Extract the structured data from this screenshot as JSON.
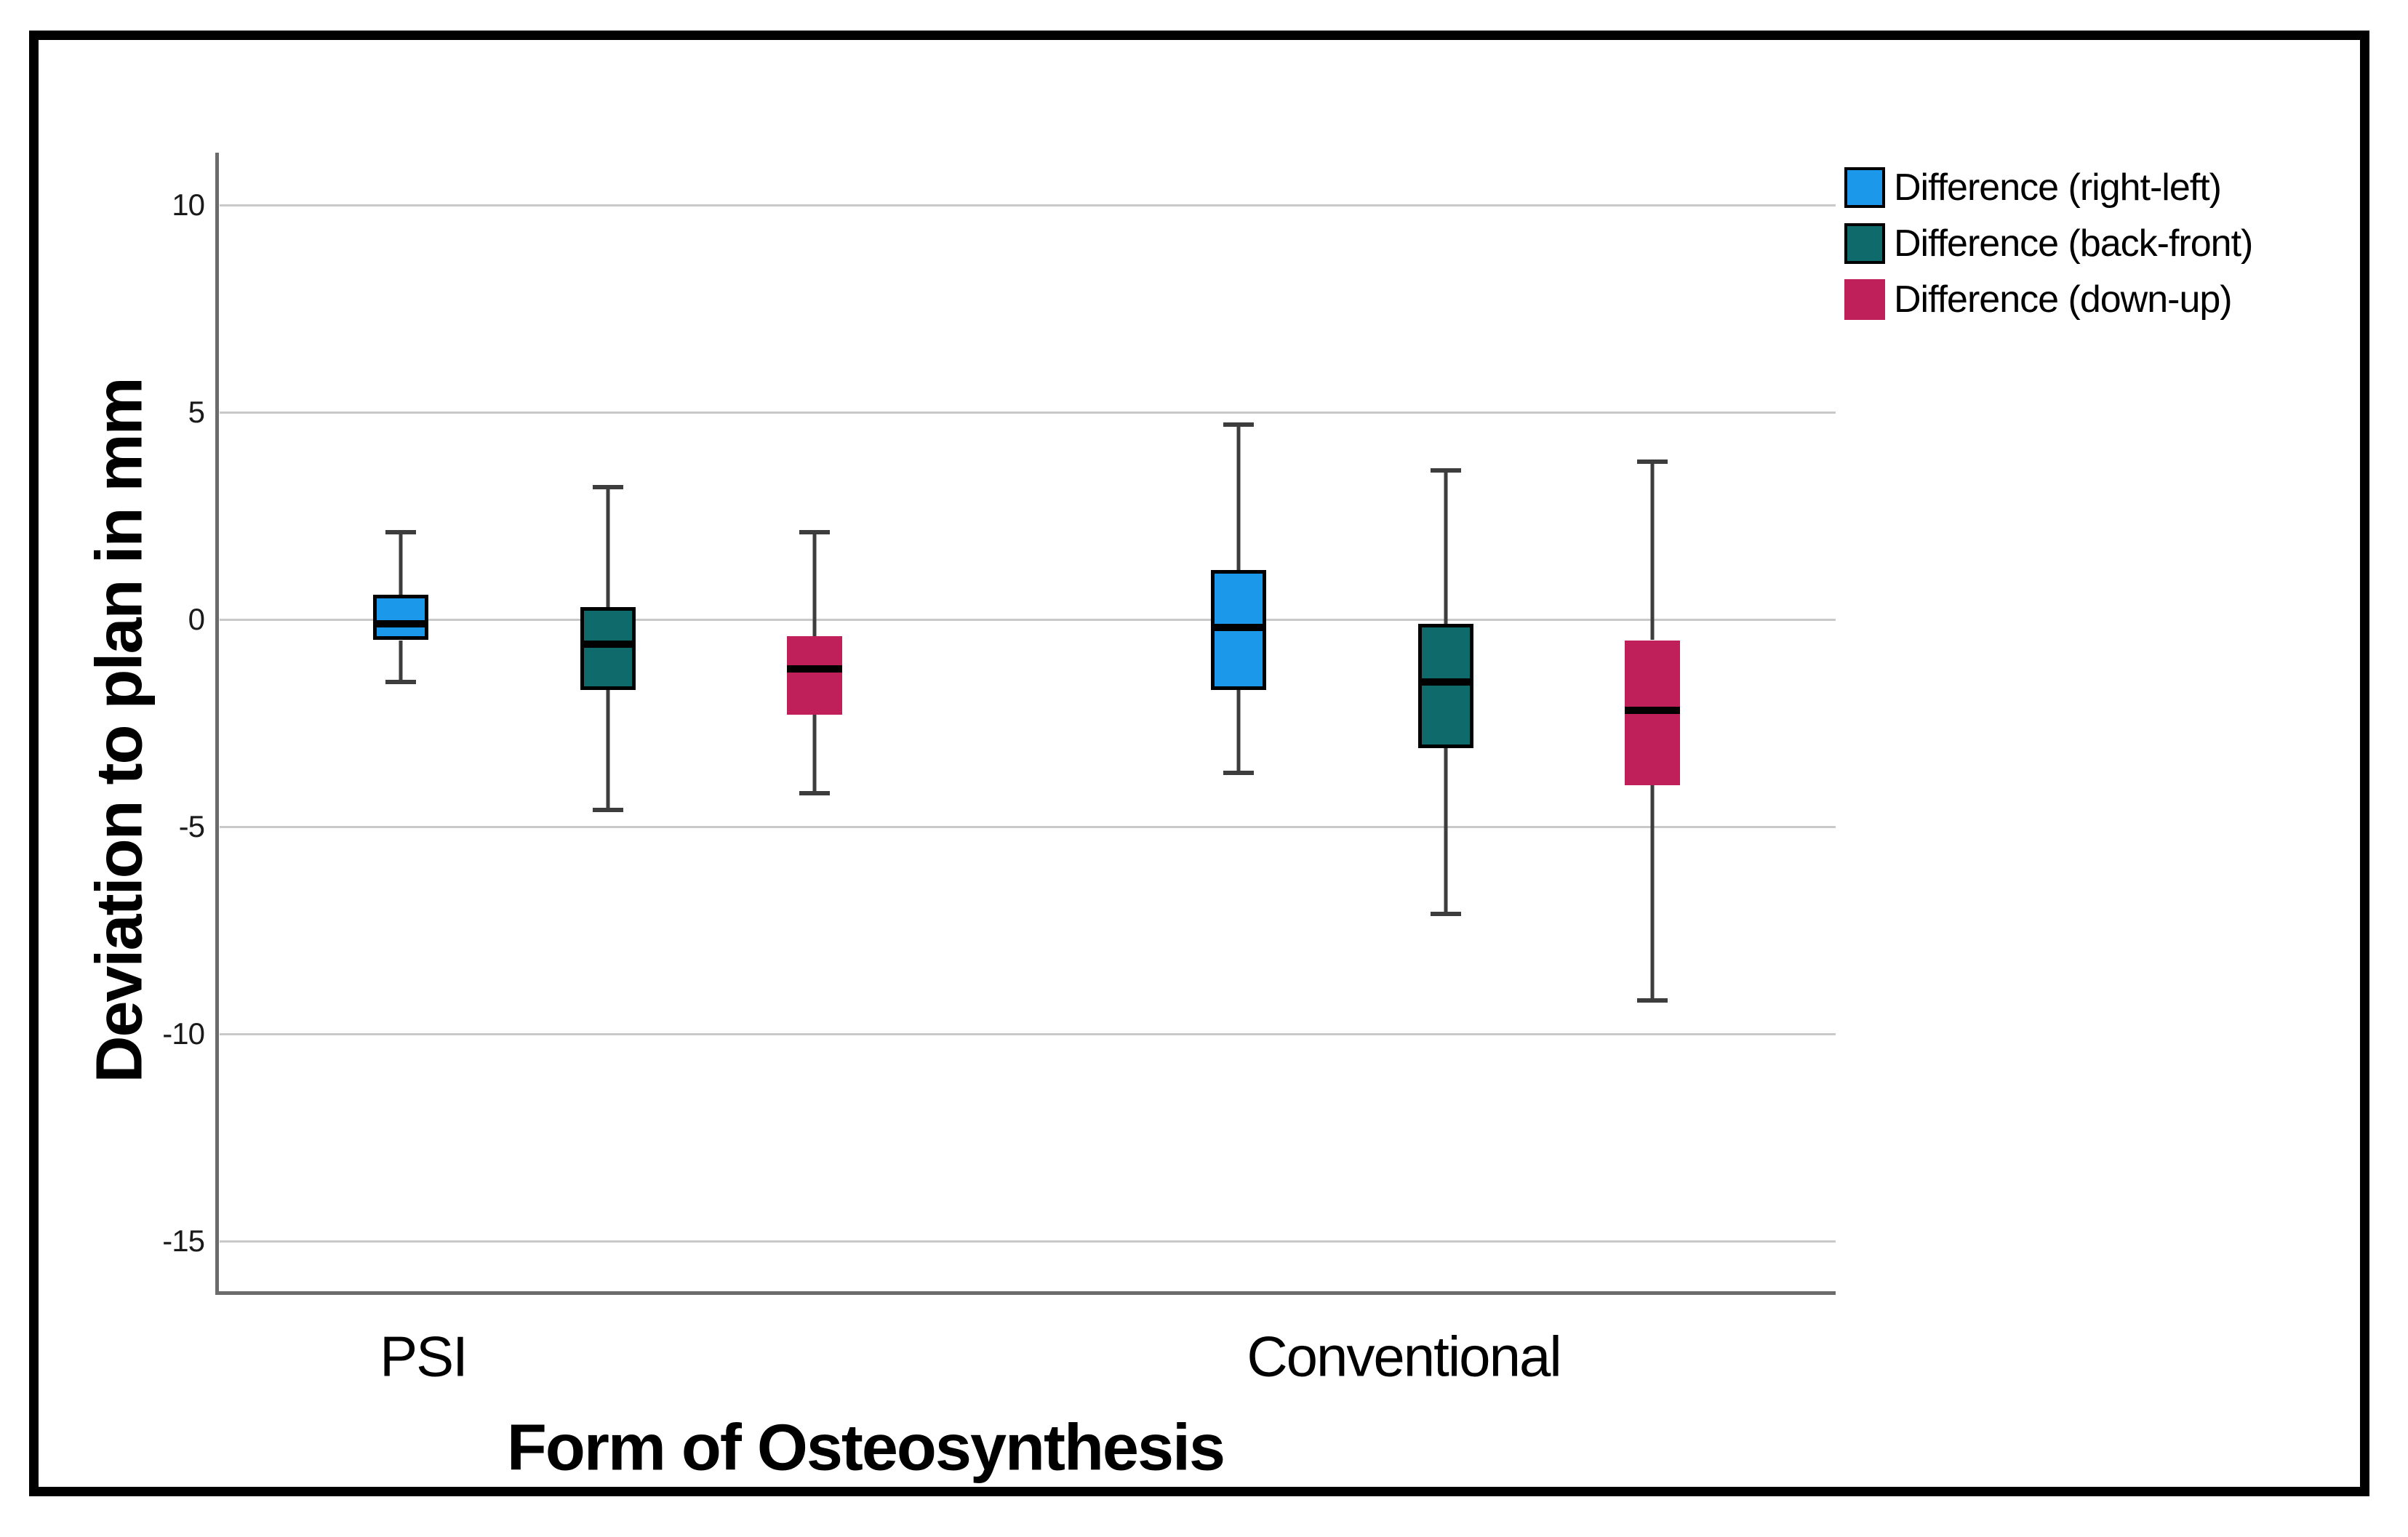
{
  "chart_data": {
    "type": "boxplot",
    "title": "",
    "xlabel": "Form of Osteosynthesis",
    "ylabel": "Deviation to plan in mm",
    "categories": [
      "PSI",
      "Conventional"
    ],
    "yticks": [
      10,
      5,
      0,
      -5,
      -10,
      -15
    ],
    "ylim": [
      -16.4,
      11.3
    ],
    "grid": "horizontal-only",
    "legend_position": "top-right",
    "series": [
      {
        "name": "Difference (right-left)",
        "color": "#1B98EA",
        "border_color": "#000000",
        "boxes": [
          {
            "category": "PSI",
            "whisker_low": -1.5,
            "q1": -0.5,
            "median": -0.1,
            "q3": 0.6,
            "whisker_high": 2.1
          },
          {
            "category": "Conventional",
            "whisker_low": -3.7,
            "q1": -1.7,
            "median": -0.2,
            "q3": 1.2,
            "whisker_high": 4.7
          }
        ]
      },
      {
        "name": "Difference (back-front)",
        "color": "#0E6A6B",
        "border_color": "#000000",
        "boxes": [
          {
            "category": "PSI",
            "whisker_low": -4.6,
            "q1": -1.7,
            "median": -0.6,
            "q3": 0.3,
            "whisker_high": 3.2
          },
          {
            "category": "Conventional",
            "whisker_low": -7.1,
            "q1": -3.1,
            "median": -1.5,
            "q3": -0.1,
            "whisker_high": 3.6
          }
        ]
      },
      {
        "name": "Difference (down-up)",
        "color": "#C0205A",
        "border_color": "none",
        "boxes": [
          {
            "category": "PSI",
            "whisker_low": -4.2,
            "q1": -2.3,
            "median": -1.2,
            "q3": -0.4,
            "whisker_high": 2.1
          },
          {
            "category": "Conventional",
            "whisker_low": -9.2,
            "q1": -4.0,
            "median": -2.2,
            "q3": -0.5,
            "whisker_high": 3.8
          }
        ]
      }
    ],
    "colors": {
      "gridline": "#C9C9C9",
      "axis_line": "#6B6B6B",
      "whisker": "#3D3D3D",
      "median": "#000000",
      "outer_border": "#000000",
      "background": "#FFFFFF"
    }
  }
}
